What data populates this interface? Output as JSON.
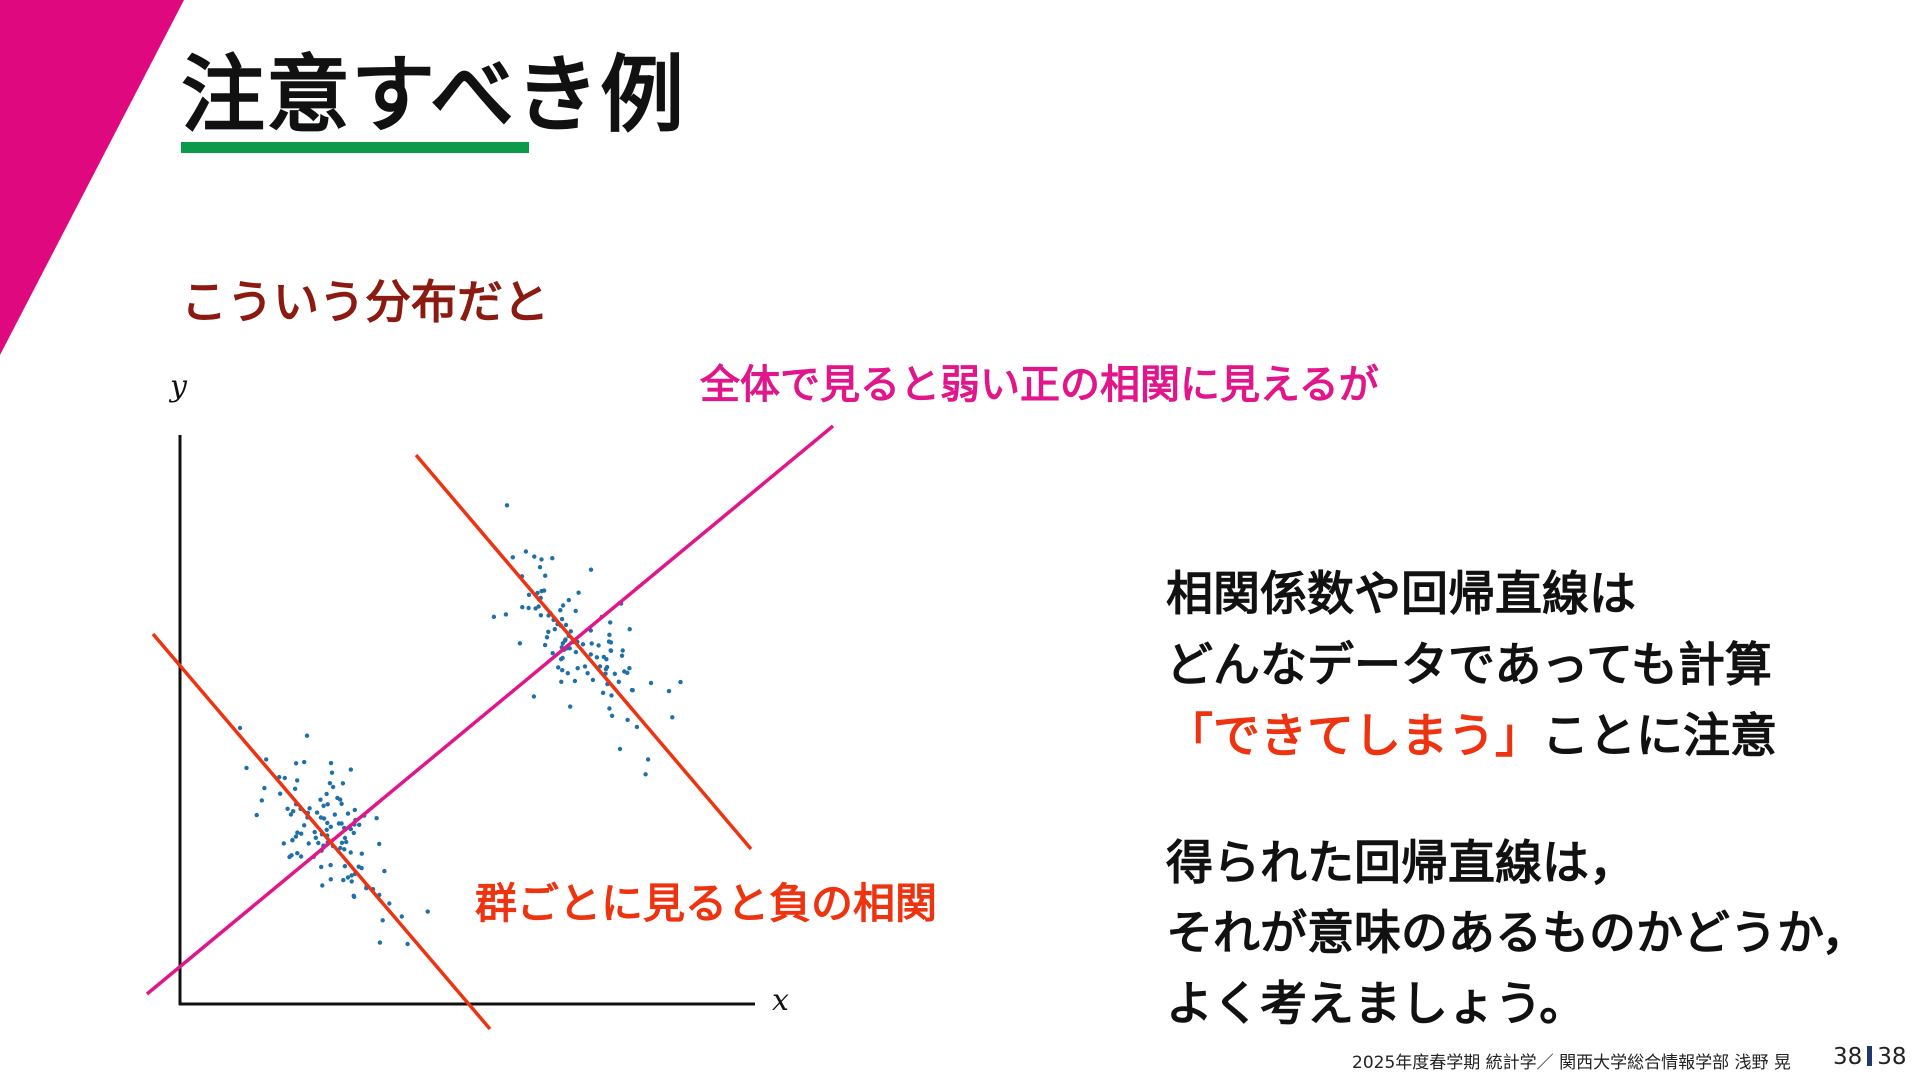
{
  "slide": {
    "title": "注意すべき例",
    "subtitle": "こういう分布だと",
    "diagram": {
      "x_axis_label": "x",
      "y_axis_label": "y",
      "overall_label": "全体で見ると弱い正の相関に見えるが",
      "group_label": "群ごとに見ると負の相関",
      "colors": {
        "points": "#1f6fa8",
        "overall_line": "#e0168a",
        "group_lines": "#ee3311"
      }
    },
    "body": {
      "para1": [
        "相関係数や回帰直線は",
        "どんなデータであっても計算"
      ],
      "para1_highlight": "「できてしまう」",
      "para1_tail": "ことに注意",
      "para2": [
        "得られた回帰直線は，",
        "それが意味のあるものかどうか，",
        "よく考えましょう。"
      ]
    },
    "footer": {
      "text": "2025年度春学期  統計学／  関西大学総合情報学部  浅野  晃",
      "page_current": "38",
      "page_total": "38"
    },
    "colors": {
      "accent_triangle": "#e0087f",
      "underline": "#0a9a4a"
    }
  }
}
